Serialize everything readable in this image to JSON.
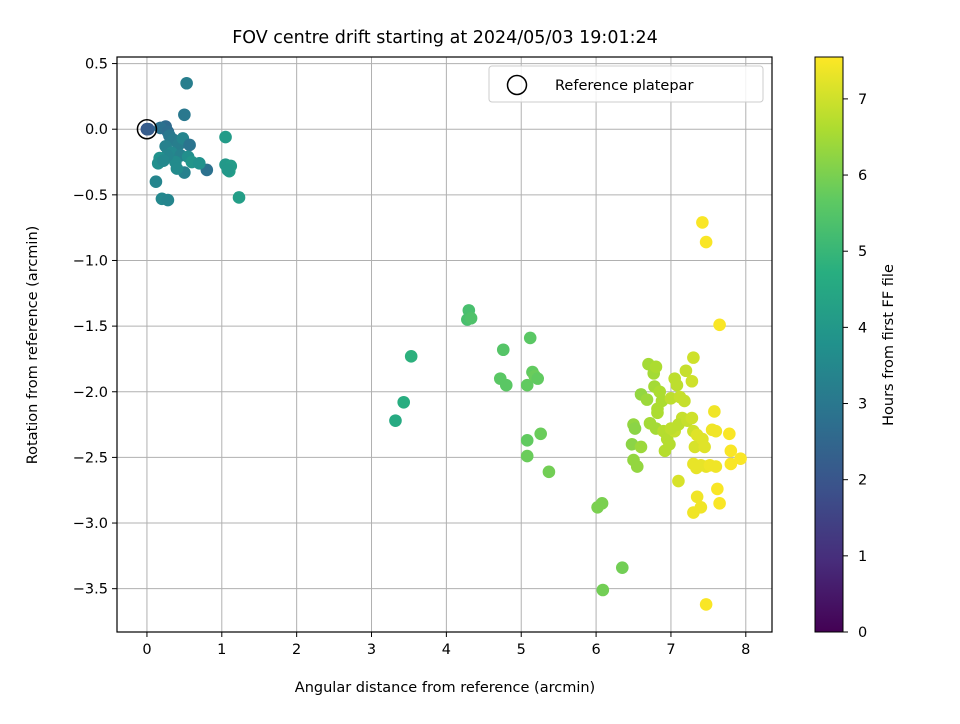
{
  "chart_data": {
    "type": "scatter",
    "title": "FOV centre drift starting at 2024/05/03 19:01:24",
    "xlabel": "Angular distance from reference (arcmin)",
    "ylabel": "Rotation from reference (arcmin)",
    "xlim": [
      -0.4,
      8.35
    ],
    "ylim": [
      -3.83,
      0.55
    ],
    "xticks": [
      0,
      1,
      2,
      3,
      4,
      5,
      6,
      7,
      8
    ],
    "yticks": [
      0.5,
      0.0,
      -0.5,
      -1.0,
      -1.5,
      -2.0,
      -2.5,
      -3.0,
      -3.5
    ],
    "grid": true,
    "legend": {
      "position": "top-right",
      "entries": [
        "Reference platepar"
      ]
    },
    "reference_point": {
      "x": 0,
      "y": 0
    },
    "colorbar": {
      "label": "Hours from first FF file",
      "colormap": "viridis",
      "range": [
        0,
        7.55
      ],
      "ticks": [
        0,
        1,
        2,
        3,
        4,
        5,
        6,
        7
      ]
    },
    "points": [
      {
        "x": 0.0,
        "y": 0.0,
        "c": 2.0
      },
      {
        "x": 0.0,
        "y": 0.0,
        "c": 2.1
      },
      {
        "x": 0.02,
        "y": 0.0,
        "c": 2.2
      },
      {
        "x": 0.25,
        "y": 0.02,
        "c": 2.6
      },
      {
        "x": 0.18,
        "y": 0.01,
        "c": 2.8
      },
      {
        "x": 0.28,
        "y": -0.02,
        "c": 2.7
      },
      {
        "x": 0.5,
        "y": 0.11,
        "c": 3.0
      },
      {
        "x": 0.53,
        "y": 0.35,
        "c": 3.2
      },
      {
        "x": 0.3,
        "y": -0.05,
        "c": 3.0
      },
      {
        "x": 0.35,
        "y": -0.08,
        "c": 3.1
      },
      {
        "x": 0.25,
        "y": -0.13,
        "c": 3.3
      },
      {
        "x": 0.42,
        "y": -0.12,
        "c": 3.2
      },
      {
        "x": 0.48,
        "y": -0.07,
        "c": 3.4
      },
      {
        "x": 0.57,
        "y": -0.12,
        "c": 2.9
      },
      {
        "x": 0.8,
        "y": -0.31,
        "c": 2.8
      },
      {
        "x": 0.33,
        "y": -0.18,
        "c": 3.5
      },
      {
        "x": 0.45,
        "y": -0.2,
        "c": 3.3
      },
      {
        "x": 0.38,
        "y": -0.25,
        "c": 3.6
      },
      {
        "x": 0.27,
        "y": -0.2,
        "c": 3.4
      },
      {
        "x": 0.17,
        "y": -0.22,
        "c": 3.8
      },
      {
        "x": 0.15,
        "y": -0.26,
        "c": 3.7
      },
      {
        "x": 0.22,
        "y": -0.24,
        "c": 3.5
      },
      {
        "x": 0.5,
        "y": -0.33,
        "c": 3.3
      },
      {
        "x": 0.4,
        "y": -0.3,
        "c": 3.6
      },
      {
        "x": 0.12,
        "y": -0.4,
        "c": 3.4
      },
      {
        "x": 0.2,
        "y": -0.53,
        "c": 3.5
      },
      {
        "x": 0.28,
        "y": -0.54,
        "c": 3.4
      },
      {
        "x": 0.55,
        "y": -0.21,
        "c": 3.7
      },
      {
        "x": 0.6,
        "y": -0.25,
        "c": 3.9
      },
      {
        "x": 0.7,
        "y": -0.26,
        "c": 3.8
      },
      {
        "x": 1.05,
        "y": -0.06,
        "c": 4.1
      },
      {
        "x": 1.05,
        "y": -0.27,
        "c": 4.0
      },
      {
        "x": 1.12,
        "y": -0.28,
        "c": 4.1
      },
      {
        "x": 1.1,
        "y": -0.32,
        "c": 4.2
      },
      {
        "x": 1.08,
        "y": -0.31,
        "c": 4.0
      },
      {
        "x": 1.23,
        "y": -0.52,
        "c": 4.2
      },
      {
        "x": 3.32,
        "y": -2.22,
        "c": 4.6
      },
      {
        "x": 3.43,
        "y": -2.08,
        "c": 4.7
      },
      {
        "x": 3.53,
        "y": -1.73,
        "c": 4.8
      },
      {
        "x": 4.3,
        "y": -1.38,
        "c": 5.3
      },
      {
        "x": 4.28,
        "y": -1.45,
        "c": 5.3
      },
      {
        "x": 4.33,
        "y": -1.44,
        "c": 5.4
      },
      {
        "x": 4.72,
        "y": -1.9,
        "c": 5.6
      },
      {
        "x": 4.76,
        "y": -1.68,
        "c": 5.5
      },
      {
        "x": 4.8,
        "y": -1.95,
        "c": 5.6
      },
      {
        "x": 5.08,
        "y": -1.95,
        "c": 5.7
      },
      {
        "x": 5.12,
        "y": -1.59,
        "c": 5.6
      },
      {
        "x": 5.15,
        "y": -1.85,
        "c": 5.7
      },
      {
        "x": 5.18,
        "y": -1.88,
        "c": 5.8
      },
      {
        "x": 5.22,
        "y": -1.9,
        "c": 5.7
      },
      {
        "x": 5.08,
        "y": -2.37,
        "c": 5.7
      },
      {
        "x": 5.08,
        "y": -2.49,
        "c": 5.8
      },
      {
        "x": 5.26,
        "y": -2.32,
        "c": 5.8
      },
      {
        "x": 5.37,
        "y": -2.61,
        "c": 5.9
      },
      {
        "x": 6.02,
        "y": -2.88,
        "c": 6.0
      },
      {
        "x": 6.08,
        "y": -2.85,
        "c": 6.0
      },
      {
        "x": 6.35,
        "y": -3.34,
        "c": 5.9
      },
      {
        "x": 6.09,
        "y": -3.51,
        "c": 5.9
      },
      {
        "x": 6.48,
        "y": -2.4,
        "c": 6.2
      },
      {
        "x": 6.5,
        "y": -2.52,
        "c": 6.3
      },
      {
        "x": 6.55,
        "y": -2.57,
        "c": 6.3
      },
      {
        "x": 6.5,
        "y": -2.25,
        "c": 6.3
      },
      {
        "x": 6.52,
        "y": -2.28,
        "c": 6.2
      },
      {
        "x": 6.6,
        "y": -2.02,
        "c": 6.3
      },
      {
        "x": 6.68,
        "y": -2.06,
        "c": 6.4
      },
      {
        "x": 6.6,
        "y": -2.42,
        "c": 6.4
      },
      {
        "x": 6.7,
        "y": -1.79,
        "c": 6.5
      },
      {
        "x": 6.77,
        "y": -1.86,
        "c": 6.5
      },
      {
        "x": 6.8,
        "y": -1.81,
        "c": 6.6
      },
      {
        "x": 6.78,
        "y": -1.96,
        "c": 6.5
      },
      {
        "x": 6.85,
        "y": -2.0,
        "c": 6.6
      },
      {
        "x": 6.82,
        "y": -2.13,
        "c": 6.6
      },
      {
        "x": 6.88,
        "y": -2.07,
        "c": 6.6
      },
      {
        "x": 6.72,
        "y": -2.24,
        "c": 6.5
      },
      {
        "x": 6.8,
        "y": -2.28,
        "c": 6.5
      },
      {
        "x": 6.82,
        "y": -2.16,
        "c": 6.6
      },
      {
        "x": 6.9,
        "y": -2.3,
        "c": 6.7
      },
      {
        "x": 6.95,
        "y": -2.36,
        "c": 6.7
      },
      {
        "x": 6.92,
        "y": -2.45,
        "c": 6.7
      },
      {
        "x": 6.98,
        "y": -2.4,
        "c": 6.7
      },
      {
        "x": 7.0,
        "y": -2.05,
        "c": 6.8
      },
      {
        "x": 7.05,
        "y": -1.9,
        "c": 6.8
      },
      {
        "x": 7.08,
        "y": -1.95,
        "c": 6.8
      },
      {
        "x": 7.12,
        "y": -2.04,
        "c": 6.9
      },
      {
        "x": 7.18,
        "y": -2.07,
        "c": 6.9
      },
      {
        "x": 7.15,
        "y": -2.2,
        "c": 6.9
      },
      {
        "x": 7.05,
        "y": -2.3,
        "c": 6.9
      },
      {
        "x": 7.1,
        "y": -2.25,
        "c": 6.8
      },
      {
        "x": 7.0,
        "y": -2.28,
        "c": 6.8
      },
      {
        "x": 7.22,
        "y": -2.22,
        "c": 6.9
      },
      {
        "x": 7.2,
        "y": -1.84,
        "c": 6.9
      },
      {
        "x": 7.28,
        "y": -1.92,
        "c": 7.0
      },
      {
        "x": 7.3,
        "y": -1.74,
        "c": 7.0
      },
      {
        "x": 7.3,
        "y": -2.3,
        "c": 7.0
      },
      {
        "x": 7.28,
        "y": -2.2,
        "c": 7.0
      },
      {
        "x": 7.32,
        "y": -2.42,
        "c": 7.1
      },
      {
        "x": 7.1,
        "y": -2.68,
        "c": 7.1
      },
      {
        "x": 7.35,
        "y": -2.33,
        "c": 7.2
      },
      {
        "x": 7.42,
        "y": -2.36,
        "c": 7.2
      },
      {
        "x": 7.45,
        "y": -2.42,
        "c": 7.2
      },
      {
        "x": 7.3,
        "y": -2.55,
        "c": 7.3
      },
      {
        "x": 7.34,
        "y": -2.58,
        "c": 7.3
      },
      {
        "x": 7.4,
        "y": -2.56,
        "c": 7.3
      },
      {
        "x": 7.47,
        "y": -2.57,
        "c": 7.3
      },
      {
        "x": 7.52,
        "y": -2.56,
        "c": 7.4
      },
      {
        "x": 7.6,
        "y": -2.57,
        "c": 7.4
      },
      {
        "x": 7.35,
        "y": -2.8,
        "c": 7.4
      },
      {
        "x": 7.4,
        "y": -2.88,
        "c": 7.4
      },
      {
        "x": 7.3,
        "y": -2.92,
        "c": 7.4
      },
      {
        "x": 7.55,
        "y": -2.29,
        "c": 7.4
      },
      {
        "x": 7.6,
        "y": -2.3,
        "c": 7.4
      },
      {
        "x": 7.58,
        "y": -2.15,
        "c": 7.4
      },
      {
        "x": 7.62,
        "y": -2.74,
        "c": 7.5
      },
      {
        "x": 7.65,
        "y": -2.85,
        "c": 7.5
      },
      {
        "x": 7.65,
        "y": -1.49,
        "c": 7.5
      },
      {
        "x": 7.78,
        "y": -2.32,
        "c": 7.5
      },
      {
        "x": 7.8,
        "y": -2.45,
        "c": 7.5
      },
      {
        "x": 7.8,
        "y": -2.55,
        "c": 7.5
      },
      {
        "x": 7.93,
        "y": -2.51,
        "c": 7.5
      },
      {
        "x": 7.42,
        "y": -0.71,
        "c": 7.5
      },
      {
        "x": 7.47,
        "y": -0.86,
        "c": 7.5
      },
      {
        "x": 7.47,
        "y": -3.62,
        "c": 7.5
      }
    ]
  }
}
